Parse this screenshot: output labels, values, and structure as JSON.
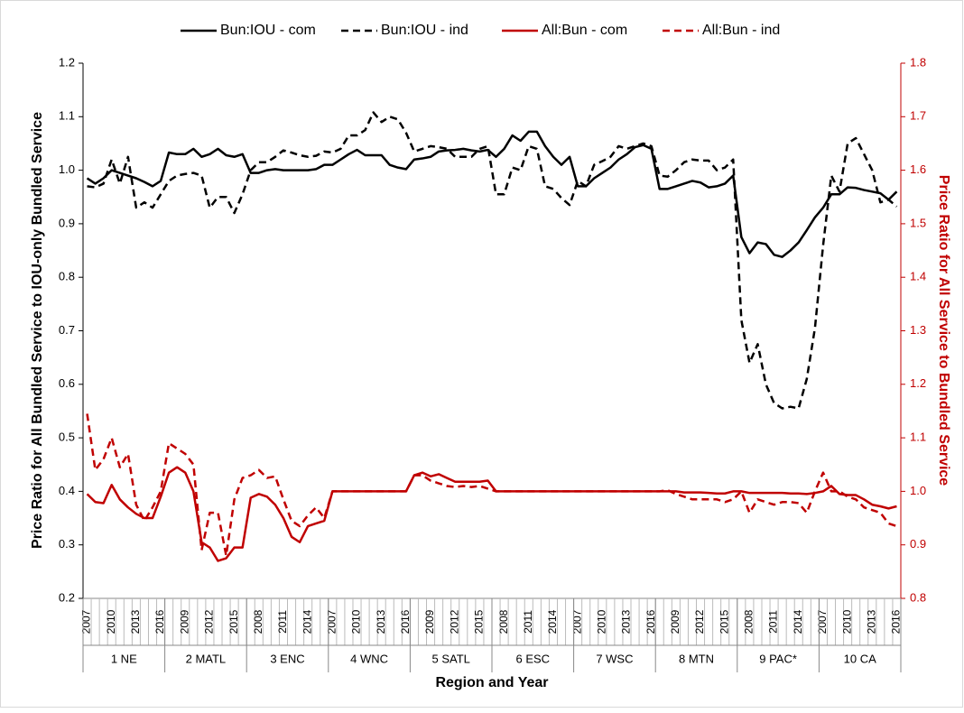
{
  "chart_data": {
    "type": "line",
    "y_label": "Price Ratio for All Bundled Service to IOU-only Bundled Service",
    "y2_label": "Price Ratio for All Service to Bundled Service",
    "x_label": "Region and Year",
    "categories": [
      "2007",
      null,
      null,
      "2010",
      null,
      null,
      "2013",
      null,
      null,
      "2016",
      null,
      null,
      "2009",
      null,
      null,
      "2012",
      null,
      null,
      "2015",
      null,
      null,
      "2008",
      null,
      null,
      "2011",
      null,
      null,
      "2014",
      null,
      null,
      "2007",
      null,
      null,
      "2010",
      null,
      null,
      "2013",
      null,
      null,
      "2016",
      null,
      null,
      "2009",
      null,
      null,
      "2012",
      null,
      null,
      "2015",
      null,
      null,
      "2008",
      null,
      null,
      "2011",
      null,
      null,
      "2014",
      null,
      null,
      "2007",
      null,
      null,
      "2010",
      null,
      null,
      "2013",
      null,
      null,
      "2016",
      null,
      null,
      "2009",
      null,
      null,
      "2012",
      null,
      null,
      "2015",
      null,
      null,
      "2008",
      null,
      null,
      "2011",
      null,
      null,
      "2014",
      null,
      null,
      "2007",
      null,
      null,
      "2010",
      null,
      null,
      "2013",
      null,
      null,
      "2016"
    ],
    "groups": [
      "1 NE",
      "2 MATL",
      "3 ENC",
      "4 WNC",
      "5 SATL",
      "6 ESC",
      "7 WSC",
      "8 MTN",
      "9 PAC*",
      "10 CA"
    ],
    "ylim": [
      0.2,
      1.2
    ],
    "yticks": [
      0.2,
      0.3,
      0.4,
      0.5,
      0.6,
      0.7,
      0.8,
      0.9,
      {
        "value": 1,
        "label": "1.0"
      },
      1.1,
      1.2
    ],
    "y2lim": [
      0.8,
      1.8
    ],
    "y2ticks": [
      0.8,
      0.9,
      {
        "value": 1,
        "label": "1.0"
      },
      1.1,
      1.2,
      1.3,
      1.4,
      1.5,
      1.6,
      1.7,
      1.8
    ],
    "y2_color": "#c00000",
    "legend": "top",
    "series": [
      {
        "name": "Bun:IOU - com",
        "color": "#000000",
        "dashed": false,
        "values": [
          0.985,
          0.975,
          0.985,
          1.0,
          0.995,
          0.99,
          0.985,
          0.978,
          0.97,
          0.98,
          1.033,
          1.03,
          1.03,
          1.04,
          1.025,
          1.03,
          1.04,
          1.028,
          1.025,
          1.03,
          0.995,
          0.995,
          1.0,
          1.002,
          1.0,
          1.0,
          1.0,
          1.0,
          1.002,
          1.01,
          1.01,
          1.02,
          1.03,
          1.038,
          1.028,
          1.028,
          1.028,
          1.01,
          1.005,
          1.002,
          1.02,
          1.022,
          1.025,
          1.035,
          1.037,
          1.038,
          1.04,
          1.037,
          1.035,
          1.038,
          1.025,
          1.04,
          1.065,
          1.055,
          1.072,
          1.072,
          1.045,
          1.025,
          1.01,
          1.025,
          0.97,
          0.97,
          0.985,
          0.995,
          1.005,
          1.02,
          1.03,
          1.043,
          1.047,
          1.04,
          0.965,
          0.965,
          0.97,
          0.975,
          0.98,
          0.977,
          0.968,
          0.97,
          0.975,
          0.99,
          0.875,
          0.845,
          0.865,
          0.862,
          0.842,
          0.838,
          0.85,
          0.865,
          0.888,
          0.912,
          0.93,
          0.955,
          0.955,
          0.968,
          0.967,
          0.963,
          0.96,
          0.957,
          0.945,
          0.96
        ]
      },
      {
        "name": "Bun:IOU - ind",
        "color": "#000000",
        "dashed": true,
        "values": [
          0.97,
          0.968,
          0.975,
          1.02,
          0.975,
          1.025,
          0.93,
          0.94,
          0.93,
          0.955,
          0.98,
          0.99,
          0.993,
          0.995,
          0.99,
          0.93,
          0.95,
          0.95,
          0.92,
          0.955,
          1.0,
          1.015,
          1.015,
          1.025,
          1.037,
          1.033,
          1.028,
          1.025,
          1.027,
          1.035,
          1.033,
          1.04,
          1.065,
          1.065,
          1.075,
          1.108,
          1.09,
          1.1,
          1.095,
          1.07,
          1.035,
          1.04,
          1.045,
          1.043,
          1.04,
          1.025,
          1.025,
          1.025,
          1.04,
          1.045,
          0.955,
          0.955,
          1.005,
          1.0,
          1.045,
          1.04,
          0.97,
          0.965,
          0.948,
          0.935,
          0.98,
          0.97,
          1.01,
          1.017,
          1.025,
          1.045,
          1.04,
          1.045,
          1.05,
          1.045,
          0.99,
          0.988,
          1.0,
          1.015,
          1.02,
          1.018,
          1.018,
          1.0,
          1.005,
          1.02,
          0.72,
          0.64,
          0.675,
          0.6,
          0.565,
          0.555,
          0.558,
          0.555,
          0.61,
          0.705,
          0.86,
          0.99,
          0.96,
          1.05,
          1.06,
          1.03,
          1.0,
          0.94,
          0.945,
          0.932
        ]
      },
      {
        "name": "All:Bun - com",
        "color": "#c00000",
        "dashed": false,
        "axis": "y2",
        "values": [
          0.995,
          0.98,
          0.978,
          1.012,
          0.985,
          0.97,
          0.958,
          0.95,
          0.95,
          0.99,
          1.035,
          1.045,
          1.035,
          1.0,
          0.905,
          0.895,
          0.87,
          0.875,
          0.895,
          0.895,
          0.988,
          0.995,
          0.99,
          0.975,
          0.95,
          0.915,
          0.905,
          0.935,
          0.94,
          0.945,
          1.0,
          1.0,
          1.0,
          1.0,
          1.0,
          1.0,
          1.0,
          1.0,
          1.0,
          1.0,
          1.03,
          1.035,
          1.028,
          1.032,
          1.025,
          1.018,
          1.018,
          1.018,
          1.018,
          1.02,
          1.0,
          1.0,
          1.0,
          1.0,
          1.0,
          1.0,
          1.0,
          1.0,
          1.0,
          1.0,
          1.0,
          1.0,
          1.0,
          1.0,
          1.0,
          1.0,
          1.0,
          1.0,
          1.0,
          1.0,
          1.0,
          1.0,
          1.0,
          0.998,
          0.998,
          0.998,
          0.997,
          0.996,
          0.996,
          1.0,
          1.0,
          0.997,
          0.997,
          0.997,
          0.997,
          0.997,
          0.996,
          0.996,
          0.995,
          0.997,
          1.0,
          1.01,
          0.995,
          0.993,
          0.993,
          0.985,
          0.975,
          0.972,
          0.968,
          0.972
        ]
      },
      {
        "name": "All:Bun - ind",
        "color": "#c00000",
        "dashed": true,
        "axis": "y2",
        "values": [
          1.145,
          1.04,
          1.06,
          1.1,
          1.045,
          1.07,
          0.975,
          0.945,
          0.97,
          1.0,
          1.09,
          1.08,
          1.07,
          1.05,
          0.89,
          0.96,
          0.96,
          0.88,
          0.985,
          1.025,
          1.03,
          1.04,
          1.025,
          1.028,
          0.985,
          0.945,
          0.935,
          0.955,
          0.97,
          0.95,
          1.0,
          1.0,
          1.0,
          1.0,
          1.0,
          1.0,
          1.0,
          1.0,
          1.0,
          1.0,
          1.03,
          1.03,
          1.02,
          1.015,
          1.01,
          1.008,
          1.01,
          1.008,
          1.01,
          1.005,
          1.0,
          1.0,
          1.0,
          1.0,
          1.0,
          1.0,
          1.0,
          1.0,
          1.0,
          1.0,
          1.0,
          1.0,
          1.0,
          1.0,
          1.0,
          1.0,
          1.0,
          1.0,
          1.0,
          1.0,
          1.0,
          1.002,
          0.995,
          0.99,
          0.985,
          0.985,
          0.985,
          0.985,
          0.98,
          0.985,
          1.0,
          0.96,
          0.985,
          0.98,
          0.975,
          0.98,
          0.98,
          0.978,
          0.96,
          1.0,
          1.035,
          1.0,
          1.0,
          0.99,
          0.985,
          0.97,
          0.965,
          0.96,
          0.94,
          0.935
        ]
      }
    ]
  }
}
